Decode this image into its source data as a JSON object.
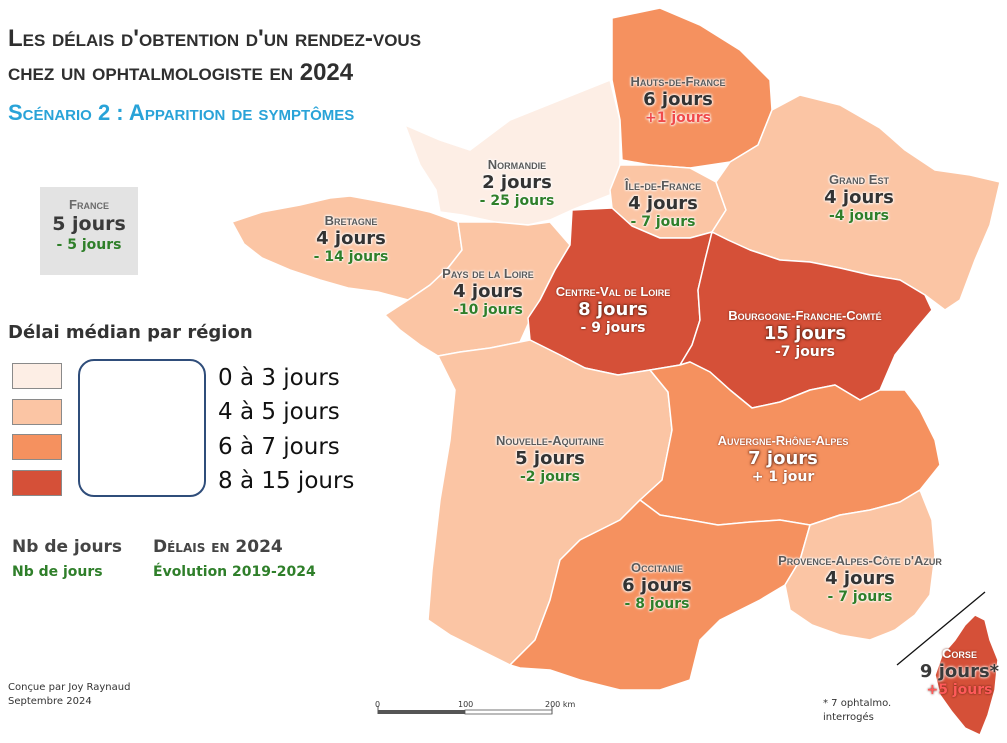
{
  "title_line1": "Les délais d'obtention d'un rendez-vous",
  "title_line2": "chez un ophtalmologiste en 2024",
  "subtitle": "Scénario 2 : Apparition de symptômes",
  "france": {
    "name": "France",
    "days": "5 jours",
    "change": "- 5 jours"
  },
  "legend": {
    "title": "Délai médian par région",
    "classes": [
      {
        "label": "0 à 3 jours",
        "color": "#fdeee5"
      },
      {
        "label": "4 à 5 jours",
        "color": "#fbc5a4"
      },
      {
        "label": "6 à 7 jours",
        "color": "#f5915f"
      },
      {
        "label": "8 à 15 jours",
        "color": "#d55038"
      }
    ]
  },
  "key": {
    "days_label": "Nb de jours",
    "days_desc": "Délais en 2024",
    "change_label": "Nb de jours",
    "change_desc": "Évolution 2019-2024"
  },
  "credit": {
    "line1": "Conçue par Joy Raynaud",
    "line2": "Septembre 2024"
  },
  "footnote": "* 7 ophtalmo. interrogés",
  "scale": {
    "s0": "0",
    "s1": "100",
    "s2": "200 km"
  },
  "regions": {
    "hdf": {
      "name": "Hauts-de-France",
      "days": "6 jours",
      "change": "+1 jours",
      "color": "#f5915f"
    },
    "nor": {
      "name": "Normandie",
      "days": "2 jours",
      "change": "- 25 jours",
      "color": "#fdeee5"
    },
    "idf": {
      "name": "Île-de-France",
      "days": "4 jours",
      "change": "- 7 jours",
      "color": "#fbc5a4"
    },
    "ges": {
      "name": "Grand Est",
      "days": "4 jours",
      "change": "-4 jours",
      "color": "#fbc5a4"
    },
    "bre": {
      "name": "Bretagne",
      "days": "4 jours",
      "change": "- 14 jours",
      "color": "#fbc5a4"
    },
    "pdl": {
      "name": "Pays de la Loire",
      "days": "4 jours",
      "change": "-10 jours",
      "color": "#fbc5a4"
    },
    "cvl": {
      "name": "Centre-Val de Loire",
      "days": "8 jours",
      "change": "- 9 jours",
      "color": "#d55038"
    },
    "bfc": {
      "name": "Bourgogne-Franche-Comté",
      "days": "15 jours",
      "change": "-7 jours",
      "color": "#d55038"
    },
    "naq": {
      "name": "Nouvelle-Aquitaine",
      "days": "5 jours",
      "change": "-2 jours",
      "color": "#fbc5a4"
    },
    "ara": {
      "name": "Auvergne-Rhône-Alpes",
      "days": "7 jours",
      "change": "+ 1 jour",
      "color": "#f5915f"
    },
    "occ": {
      "name": "Occitanie",
      "days": "6 jours",
      "change": "- 8 jours",
      "color": "#f5915f"
    },
    "pac": {
      "name": "Provence-Alpes-Côte d'Azur",
      "days": "4 jours",
      "change": "- 7 jours",
      "color": "#fbc5a4"
    },
    "cor": {
      "name": "Corse",
      "days": "9 jours*",
      "change": "+5 jours",
      "color": "#d55038"
    }
  }
}
